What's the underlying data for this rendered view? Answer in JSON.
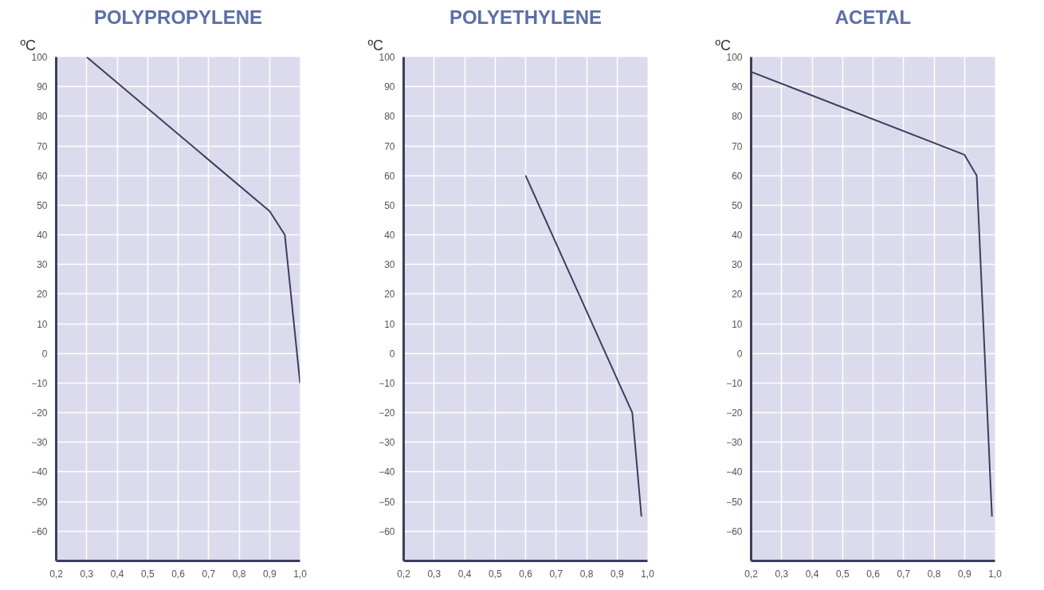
{
  "chart_data": [
    {
      "type": "line",
      "title": "POLYPROPYLENE",
      "ylabel": "ºC",
      "x": [
        0.3,
        0.9,
        0.95,
        1.0
      ],
      "values": [
        100,
        48,
        40,
        -10
      ],
      "color": "#3b3e5e",
      "xlim": [
        0.2,
        1.0
      ],
      "ylim": [
        -70,
        100
      ],
      "xticks": [
        {
          "value": 0.2,
          "label": "0,2"
        },
        {
          "value": 0.3,
          "label": "0,3"
        },
        {
          "value": 0.4,
          "label": "0,4"
        },
        {
          "value": 0.5,
          "label": "0,5"
        },
        {
          "value": 0.6,
          "label": "0,6"
        },
        {
          "value": 0.7,
          "label": "0,7"
        },
        {
          "value": 0.8,
          "label": "0,8"
        },
        {
          "value": 0.9,
          "label": "0,9"
        },
        {
          "value": 1.0,
          "label": "1,0"
        }
      ],
      "yticks": [
        -60,
        -50,
        -40,
        -30,
        -20,
        -10,
        0,
        10,
        20,
        30,
        40,
        50,
        60,
        70,
        80,
        90,
        100
      ],
      "grid": true,
      "marker": "none",
      "line_style": "solid"
    },
    {
      "type": "line",
      "title": "POLYETHYLENE",
      "ylabel": "ºC",
      "x": [
        0.6,
        0.95,
        0.98
      ],
      "values": [
        60,
        -20,
        -55
      ],
      "color": "#3b3e5e",
      "xlim": [
        0.2,
        1.0
      ],
      "ylim": [
        -70,
        100
      ],
      "xticks": [
        {
          "value": 0.2,
          "label": "0,2"
        },
        {
          "value": 0.3,
          "label": "0,3"
        },
        {
          "value": 0.4,
          "label": "0,4"
        },
        {
          "value": 0.5,
          "label": "0,5"
        },
        {
          "value": 0.6,
          "label": "0,6"
        },
        {
          "value": 0.7,
          "label": "0,7"
        },
        {
          "value": 0.8,
          "label": "0,8"
        },
        {
          "value": 0.9,
          "label": "0,9"
        },
        {
          "value": 1.0,
          "label": "1,0"
        }
      ],
      "yticks": [
        -60,
        -50,
        -40,
        -30,
        -20,
        -10,
        0,
        10,
        20,
        30,
        40,
        50,
        60,
        70,
        80,
        90,
        100
      ],
      "grid": true,
      "marker": "none",
      "line_style": "solid"
    },
    {
      "type": "line",
      "title": "ACETAL",
      "ylabel": "ºC",
      "x": [
        0.2,
        0.9,
        0.94,
        0.99
      ],
      "values": [
        95,
        67,
        60,
        -55
      ],
      "color": "#3b3e5e",
      "xlim": [
        0.2,
        1.0
      ],
      "ylim": [
        -70,
        100
      ],
      "xticks": [
        {
          "value": 0.2,
          "label": "0,2"
        },
        {
          "value": 0.3,
          "label": "0,3"
        },
        {
          "value": 0.4,
          "label": "0,4"
        },
        {
          "value": 0.5,
          "label": "0,5"
        },
        {
          "value": 0.6,
          "label": "0,6"
        },
        {
          "value": 0.7,
          "label": "0,7"
        },
        {
          "value": 0.8,
          "label": "0,8"
        },
        {
          "value": 0.9,
          "label": "0,9"
        },
        {
          "value": 1.0,
          "label": "1,0"
        }
      ],
      "yticks": [
        -60,
        -50,
        -40,
        -30,
        -20,
        -10,
        0,
        10,
        20,
        30,
        40,
        50,
        60,
        70,
        80,
        90,
        100
      ],
      "grid": true,
      "marker": "none",
      "line_style": "solid"
    }
  ]
}
